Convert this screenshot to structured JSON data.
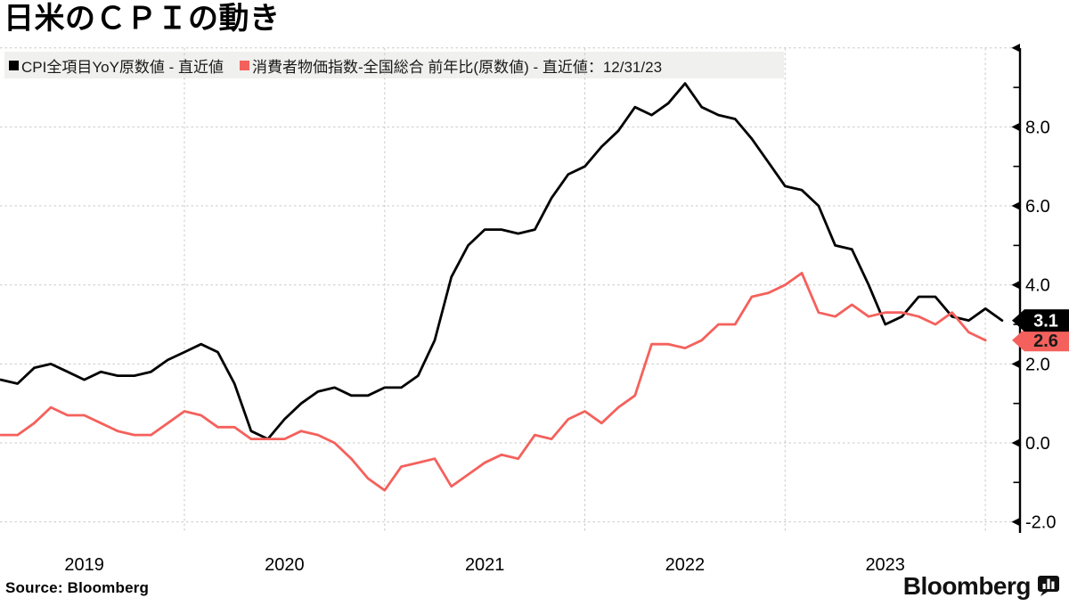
{
  "header": {
    "title": "日米のＣＰＩの動き"
  },
  "legend": {
    "items": [
      {
        "label": "CPI全項目YoY原数値 - 直近値",
        "color": "#000000"
      },
      {
        "label": "消費者物価指数-全国総合 前年比(原数値) - 直近値：12/31/23",
        "color": "#F4615C"
      }
    ]
  },
  "chart_data": {
    "type": "line",
    "x_unit": "month",
    "x_start": "2019-01",
    "x_tick_labels": [
      "2019",
      "2020",
      "2021",
      "2022",
      "2023"
    ],
    "y_ticks_labeled": [
      8.0,
      6.0,
      4.0,
      2.0,
      0.0,
      -2.0
    ],
    "y_ticks_minor": [
      9.0,
      7.0,
      5.0,
      3.0,
      1.0,
      -1.0
    ],
    "y_tick_top_unlabeled": 10.0,
    "ylim": [
      -2.6,
      10.0
    ],
    "grid": true,
    "legend_position": "top-left",
    "y_axis_side": "right",
    "series": [
      {
        "name": "CPI全項目YoY原数値 - 直近値",
        "color": "#000000",
        "last_value_label": "3.1",
        "values": [
          1.6,
          1.5,
          1.9,
          2.0,
          1.8,
          1.6,
          1.8,
          1.7,
          1.7,
          1.8,
          2.1,
          2.3,
          2.5,
          2.3,
          1.5,
          0.3,
          0.1,
          0.6,
          1.0,
          1.3,
          1.4,
          1.2,
          1.2,
          1.4,
          1.4,
          1.7,
          2.6,
          4.2,
          5.0,
          5.4,
          5.4,
          5.3,
          5.4,
          6.2,
          6.8,
          7.0,
          7.5,
          7.9,
          8.5,
          8.3,
          8.6,
          9.1,
          8.5,
          8.3,
          8.2,
          7.7,
          7.1,
          6.5,
          6.4,
          6.0,
          5.0,
          4.9,
          4.0,
          3.0,
          3.2,
          3.7,
          3.7,
          3.2,
          3.1,
          3.4,
          3.1
        ]
      },
      {
        "name": "消費者物価指数-全国総合 前年比(原数値) - 直近値：12/31/23",
        "color": "#F4615C",
        "last_value_label": "2.6",
        "values": [
          0.2,
          0.2,
          0.5,
          0.9,
          0.7,
          0.7,
          0.5,
          0.3,
          0.2,
          0.2,
          0.5,
          0.8,
          0.7,
          0.4,
          0.4,
          0.1,
          0.1,
          0.1,
          0.3,
          0.2,
          0.0,
          -0.4,
          -0.9,
          -1.2,
          -0.6,
          -0.5,
          -0.4,
          -1.1,
          -0.8,
          -0.5,
          -0.3,
          -0.4,
          0.2,
          0.1,
          0.6,
          0.8,
          0.5,
          0.9,
          1.2,
          2.5,
          2.5,
          2.4,
          2.6,
          3.0,
          3.0,
          3.7,
          3.8,
          4.0,
          4.3,
          3.3,
          3.2,
          3.5,
          3.2,
          3.3,
          3.3,
          3.2,
          3.0,
          3.3,
          2.8,
          2.6
        ]
      }
    ]
  },
  "footer": {
    "source": "Source: Bloomberg",
    "brand": "Bloomberg"
  }
}
